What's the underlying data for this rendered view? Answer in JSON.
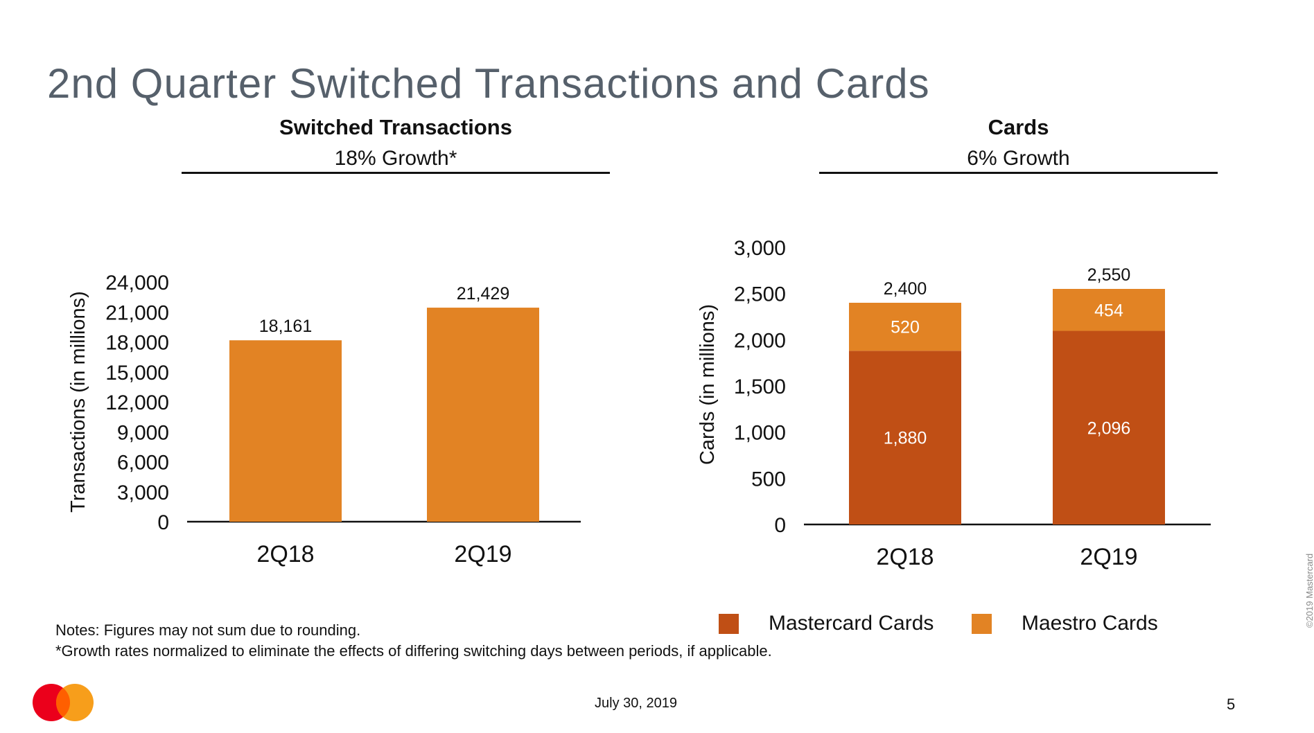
{
  "slide": {
    "title": "2nd Quarter Switched Transactions and Cards",
    "notes": [
      "Notes: Figures may not sum due to rounding.",
      "*Growth rates normalized to eliminate the effects of differing switching days between periods, if applicable."
    ],
    "date": "July 30, 2019",
    "page_number": "5",
    "copyright": "©2019 Mastercard",
    "logo": {
      "icon": "mastercard-logo",
      "colors": [
        "#eb001b",
        "#f79e1b",
        "#ff5f00"
      ]
    }
  },
  "panels": [
    {
      "title": "Switched Transactions",
      "subtitle": "18% Growth*"
    },
    {
      "title": "Cards",
      "subtitle": "6% Growth"
    }
  ],
  "chart_data": [
    {
      "type": "bar",
      "title": "Switched Transactions",
      "subtitle": "18% Growth*",
      "categories": [
        "2Q18",
        "2Q19"
      ],
      "values": [
        18161,
        21429
      ],
      "value_labels": [
        "18,161",
        "21,429"
      ],
      "ylabel": "Transactions (in millions)",
      "ylim": [
        0,
        24000
      ],
      "yticks": [
        0,
        3000,
        6000,
        9000,
        12000,
        15000,
        18000,
        21000,
        24000
      ],
      "ytick_labels": [
        "0",
        "3,000",
        "6,000",
        "9,000",
        "12,000",
        "15,000",
        "18,000",
        "21,000",
        "24,000"
      ],
      "grid": false,
      "colors": {
        "bar": "#e28324"
      }
    },
    {
      "type": "bar",
      "stacked": true,
      "title": "Cards",
      "subtitle": "6% Growth",
      "categories": [
        "2Q18",
        "2Q19"
      ],
      "series": [
        {
          "name": "Mastercard Cards",
          "values": [
            1880,
            2096
          ],
          "labels": [
            "1,880",
            "2,096"
          ],
          "color": "#c04f15"
        },
        {
          "name": "Maestro Cards",
          "values": [
            520,
            454
          ],
          "labels": [
            "520",
            "454"
          ],
          "color": "#e28324"
        }
      ],
      "totals": [
        2400,
        2550
      ],
      "total_labels": [
        "2,400",
        "2,550"
      ],
      "ylabel": "Cards (in millions)",
      "ylim": [
        0,
        3000
      ],
      "yticks": [
        0,
        500,
        1000,
        1500,
        2000,
        2500,
        3000
      ],
      "ytick_labels": [
        "0",
        "500",
        "1,000",
        "1,500",
        "2,000",
        "2,500",
        "3,000"
      ],
      "grid": false,
      "legend": "bottom"
    }
  ]
}
